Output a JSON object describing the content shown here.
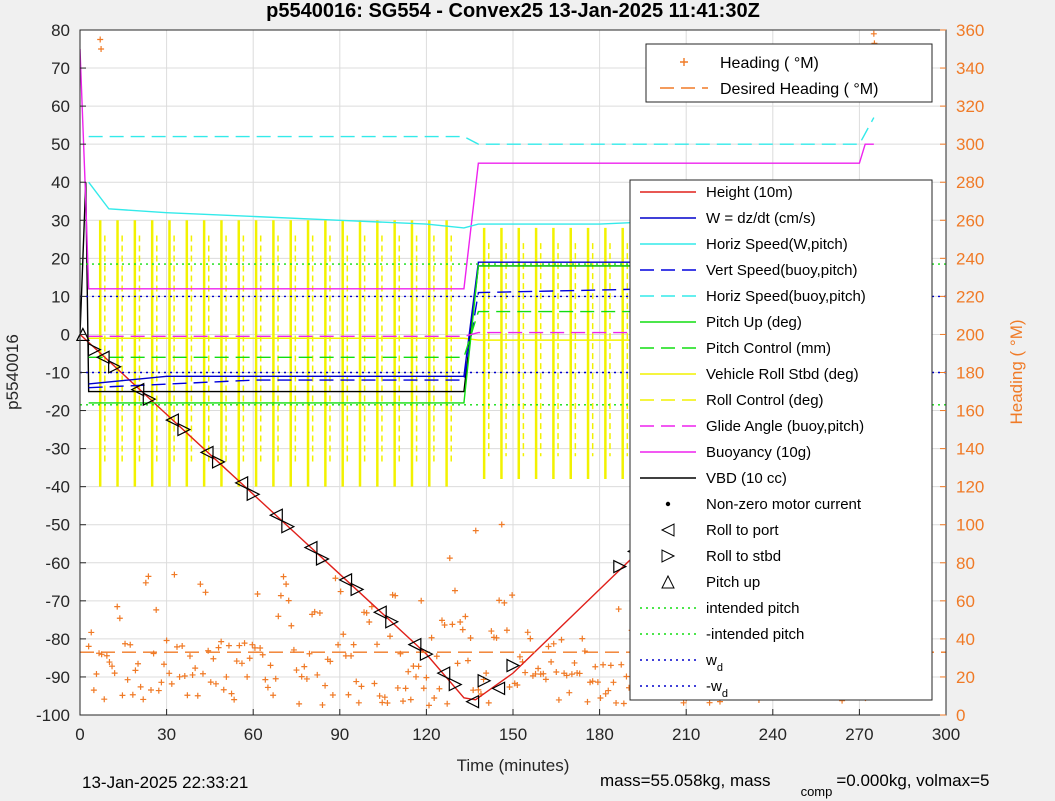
{
  "chart_data": {
    "type": "line",
    "title": "p5540016: SG554 - Convex25 13-Jan-2025 11:41:30Z",
    "xlabel": "Time (minutes)",
    "ylabel": "p5540016",
    "y2label": "Heading (  °M)",
    "xlim": [
      0,
      300
    ],
    "ylim": [
      -100,
      80
    ],
    "y2lim": [
      0,
      360
    ],
    "xticks": [
      0,
      30,
      60,
      90,
      120,
      150,
      180,
      210,
      240,
      270,
      300
    ],
    "yticks": [
      -100,
      -90,
      -80,
      -70,
      -60,
      -50,
      -40,
      -30,
      -20,
      -10,
      0,
      10,
      20,
      30,
      40,
      50,
      60,
      70,
      80
    ],
    "y2ticks": [
      0,
      20,
      40,
      60,
      80,
      100,
      120,
      140,
      160,
      180,
      200,
      220,
      240,
      260,
      280,
      300,
      320,
      340,
      360
    ],
    "grid": true,
    "legends": {
      "heading": {
        "placement": "top-right",
        "entries": [
          {
            "label": "Heading (  °M)",
            "color": "#f07a26",
            "marker": "+"
          },
          {
            "label": "Desired Heading (  °M)",
            "color": "#f07a26",
            "dash": "dashed"
          }
        ]
      },
      "main": {
        "placement": "right",
        "entries": [
          {
            "label": "Height (10m)",
            "color": "#e0201a",
            "dash": "solid"
          },
          {
            "label": "W = dz/dt (cm/s)",
            "color": "#0000cc",
            "dash": "solid"
          },
          {
            "label": "Horiz Speed(W,pitch)",
            "color": "#33eaea",
            "dash": "solid"
          },
          {
            "label": "Vert Speed(buoy,pitch)",
            "color": "#0000dd",
            "dash": "dashed"
          },
          {
            "label": "Horiz Speed(buoy,pitch)",
            "color": "#33eaea",
            "dash": "dashed"
          },
          {
            "label": "Pitch Up (deg)",
            "color": "#11dd11",
            "dash": "solid"
          },
          {
            "label": "Pitch Control (mm)",
            "color": "#11dd11",
            "dash": "dashed"
          },
          {
            "label": "Vehicle Roll Stbd (deg)",
            "color": "#f2f200",
            "dash": "solid"
          },
          {
            "label": "Roll Control (deg)",
            "color": "#f2f200",
            "dash": "dashed"
          },
          {
            "label": "Glide Angle (buoy,pitch)",
            "color": "#ee22ee",
            "dash": "dashed"
          },
          {
            "label": "Buoyancy (10g)",
            "color": "#ee22ee",
            "dash": "solid"
          },
          {
            "label": "VBD (10 cc)",
            "color": "#000000",
            "dash": "solid"
          },
          {
            "label": "Non-zero motor current",
            "color": "#000000",
            "marker": "dot"
          },
          {
            "label": "Roll to port",
            "color": "#000000",
            "marker": "left-triangle"
          },
          {
            "label": "Roll to stbd",
            "color": "#000000",
            "marker": "right-triangle"
          },
          {
            "label": "Pitch up",
            "color": "#000000",
            "marker": "up-triangle"
          },
          {
            "label": "intended pitch",
            "color": "#11dd11",
            "dash": "dotted"
          },
          {
            "label": "-intended pitch",
            "color": "#11dd11",
            "dash": "dotted"
          },
          {
            "label": "w_d",
            "color": "#0000cc",
            "dash": "dotted"
          },
          {
            "label": "-w_d",
            "color": "#0000cc",
            "dash": "dotted"
          }
        ]
      }
    },
    "series": [
      {
        "name": "Height (10m)",
        "axis": "left",
        "color": "#e0201a",
        "x": [
          0,
          15,
          30,
          45,
          60,
          75,
          90,
          105,
          120,
          133,
          137,
          150,
          165,
          180,
          195,
          210,
          225,
          240,
          255,
          270,
          276
        ],
        "y": [
          0,
          -10.5,
          -21,
          -31.5,
          -42,
          -52.5,
          -63,
          -73.5,
          -84,
          -95.5,
          -96,
          -89,
          -78,
          -67,
          -56,
          -45,
          -35,
          -24,
          -13.5,
          -3,
          -2
        ]
      },
      {
        "name": "VBD (10 cc)",
        "axis": "left",
        "color": "#000000",
        "x": [
          0,
          2,
          3,
          130,
          133,
          138,
          270,
          272,
          275
        ],
        "y": [
          0,
          40,
          -15,
          -15,
          -15,
          18,
          18,
          20,
          20
        ]
      },
      {
        "name": "Buoyancy (10g)",
        "axis": "left",
        "color": "#ee22ee",
        "x": [
          0,
          2,
          3,
          133,
          138,
          270,
          272,
          275
        ],
        "y": [
          75,
          35,
          12,
          12,
          45,
          45,
          50,
          50
        ]
      },
      {
        "name": "Horiz Speed(W,pitch)",
        "axis": "left",
        "color": "#33eaea",
        "x": [
          3,
          10,
          30,
          60,
          90,
          120,
          133,
          138,
          150,
          180,
          210,
          240,
          270,
          275
        ],
        "y": [
          40,
          33,
          32,
          31,
          30,
          29,
          28,
          29,
          29,
          29,
          30,
          29,
          28,
          35
        ]
      },
      {
        "name": "Horiz Speed(buoy,pitch)",
        "axis": "left",
        "color": "#33eaea",
        "x": [
          3,
          130,
          133,
          138,
          160,
          200,
          240,
          270,
          275
        ],
        "y": [
          52,
          52,
          52,
          50,
          50,
          50,
          50,
          50,
          57
        ]
      },
      {
        "name": "W = dz/dt (cm/s)",
        "axis": "left",
        "color": "#0000cc",
        "x": [
          3,
          30,
          60,
          90,
          120,
          133,
          138,
          160,
          200,
          240,
          270,
          275
        ],
        "y": [
          -13,
          -11,
          -11,
          -11,
          -11,
          -11,
          19,
          19,
          19,
          19,
          19,
          18
        ]
      },
      {
        "name": "Vert Speed(buoy,pitch)",
        "axis": "left",
        "color": "#0000dd",
        "x": [
          3,
          60,
          133,
          138,
          200,
          270,
          275
        ],
        "y": [
          -14,
          -12,
          -12,
          11,
          12,
          11,
          11
        ]
      },
      {
        "name": "Pitch Up (deg)",
        "axis": "left",
        "color": "#11dd11",
        "x": [
          3,
          60,
          133,
          138,
          200,
          270,
          275
        ],
        "y": [
          -18,
          -18,
          -18,
          18,
          18,
          18,
          18
        ]
      },
      {
        "name": "Pitch Control (mm)",
        "axis": "left",
        "color": "#11dd11",
        "x": [
          3,
          133,
          138,
          275
        ],
        "y": [
          -6,
          -6,
          6,
          6
        ]
      },
      {
        "name": "Glide Angle (buoy,pitch)",
        "axis": "left",
        "color": "#ee22ee",
        "x": [
          3,
          133,
          138,
          275
        ],
        "y": [
          -0.5,
          -0.5,
          0.5,
          0.5
        ]
      },
      {
        "name": "intended pitch",
        "axis": "left",
        "color": "#11dd11",
        "x": [
          0,
          300
        ],
        "y": [
          18.5,
          18.5
        ]
      },
      {
        "name": "-intended pitch",
        "axis": "left",
        "color": "#11dd11",
        "x": [
          0,
          300
        ],
        "y": [
          -18.5,
          -18.5
        ]
      },
      {
        "name": "w_d",
        "axis": "left",
        "color": "#0000cc",
        "x": [
          0,
          300
        ],
        "y": [
          10,
          10
        ]
      },
      {
        "name": "-w_d",
        "axis": "left",
        "color": "#0000cc",
        "x": [
          0,
          300
        ],
        "y": [
          -10,
          -10
        ]
      },
      {
        "name": "Desired Heading (  °M)",
        "axis": "right",
        "color": "#f07a26",
        "x": [
          0,
          300
        ],
        "y": [
          33,
          33
        ]
      }
    ],
    "roll_bursts_x": [
      7,
      13,
      19,
      25,
      31,
      37,
      43,
      49,
      55,
      61,
      67,
      73,
      79,
      85,
      91,
      97,
      103,
      109,
      115,
      121,
      127,
      140,
      146,
      152,
      158,
      164,
      170,
      176,
      182,
      188,
      194,
      200,
      206,
      212,
      218,
      224,
      230,
      236,
      242,
      248,
      254,
      260,
      266,
      272
    ],
    "markers": {
      "pitch_up": {
        "x": [
          1,
          275
        ],
        "y": [
          0,
          -1.5
        ]
      },
      "roll_stbd": {
        "x": [
          5,
          12,
          24,
          36,
          48,
          60,
          72,
          84,
          96,
          108,
          120,
          130,
          140,
          150,
          187,
          200,
          212,
          224,
          236,
          248,
          260,
          272
        ],
        "y": [
          -4,
          -8.5,
          -17,
          -25,
          -33.5,
          -42,
          -50.5,
          -59,
          -67,
          -75.5,
          -84,
          -92,
          -91,
          -87,
          -61,
          -51,
          -41,
          -31,
          -21.5,
          -12.5,
          -4,
          -1.5
        ]
      },
      "roll_port": {
        "x": [
          8,
          20,
          32,
          44,
          56,
          68,
          80,
          92,
          104,
          116,
          126,
          136,
          145,
          192,
          206,
          218,
          230,
          242,
          254,
          266
        ],
        "y": [
          -6,
          -14.5,
          -22.5,
          -31,
          -39,
          -47.5,
          -56,
          -64.5,
          -73,
          -81.5,
          -89,
          -96.5,
          -93,
          -57,
          -46,
          -36,
          -26,
          -17,
          -8,
          -3
        ]
      }
    },
    "heading_scatter_note": "Heading (°M) scattered mostly 0–80°, peaks to ~100° near 130–150 min, spikes near 355° at ~7 min and 276 min"
  },
  "footer": {
    "left": "13-Jan-2025 22:33:21",
    "right_a": "mass=55.058kg, mass",
    "right_sub": "comp",
    "right_b": "=0.000kg, volmax=5"
  }
}
